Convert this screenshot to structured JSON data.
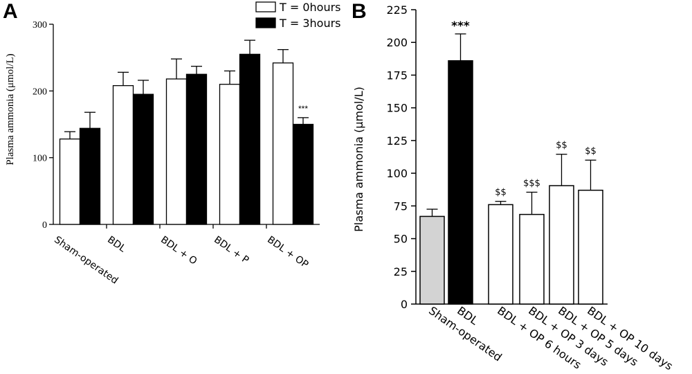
{
  "chart_data": [
    {
      "panel": "A",
      "type": "bar",
      "ylabel": "Plasma ammonia (μmol/L)",
      "ylim": [
        0,
        300
      ],
      "yticks": [
        0,
        100,
        200,
        300
      ],
      "categories": [
        "Sham-operated",
        "BDL",
        "BDL + O",
        "BDL + P",
        "BDL + OP"
      ],
      "series": [
        {
          "name": "T = 0hours",
          "color": "#ffffff",
          "values": [
            128,
            208,
            218,
            210,
            242
          ],
          "errors": [
            11,
            20,
            30,
            20,
            20
          ]
        },
        {
          "name": "T = 3hours",
          "color": "#000000",
          "values": [
            144,
            195,
            225,
            255,
            150
          ],
          "errors": [
            24,
            21,
            12,
            21,
            10
          ]
        }
      ],
      "annotations": [
        {
          "category": "BDL + OP",
          "series": "T = 3hours",
          "text": "***"
        }
      ],
      "legend": "top-right"
    },
    {
      "panel": "B",
      "type": "bar",
      "ylabel": "Plasma ammonia (μmol/L)",
      "ylim": [
        0,
        225
      ],
      "yticks": [
        0,
        25,
        50,
        75,
        100,
        125,
        150,
        175,
        200,
        225
      ],
      "categories": [
        "Sham-operated",
        "BDL",
        "BDL + OP 6 hours",
        "BDL + OP 3 days",
        "BDL + OP 5 days",
        "BDL + OP 10 days"
      ],
      "values": [
        67,
        186,
        76,
        68.5,
        90.5,
        87
      ],
      "errors": [
        5.5,
        20.5,
        2.5,
        17,
        24,
        23
      ],
      "colors": [
        "#d3d3d3",
        "#000000",
        "#ffffff",
        "#ffffff",
        "#ffffff",
        "#ffffff"
      ],
      "annotations": [
        "",
        "***",
        "$$",
        "$$$",
        "$$",
        "$$"
      ]
    }
  ]
}
